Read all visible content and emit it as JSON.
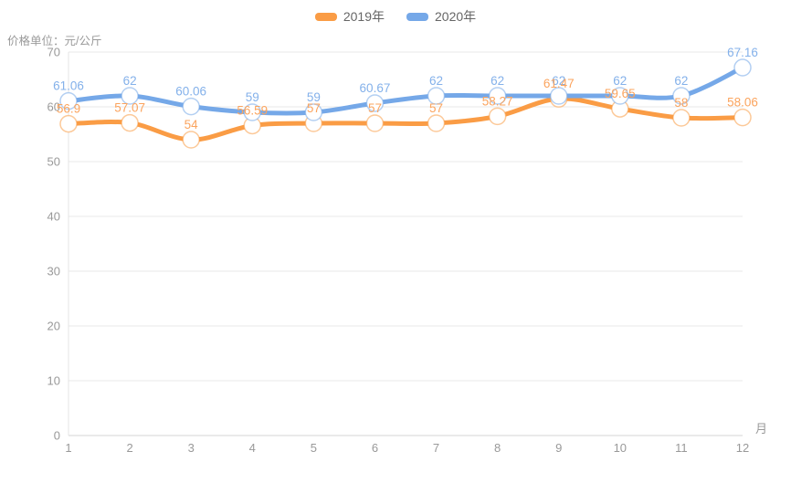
{
  "header": {
    "unit_label": "价格单位：元/公斤"
  },
  "legend": {
    "items": [
      {
        "label": "2019年",
        "color": "#fa9c45"
      },
      {
        "label": "2020年",
        "color": "#75a8e8"
      }
    ]
  },
  "chart_data": {
    "type": "line",
    "title": "价格单位：元/公斤",
    "categories": [
      "1",
      "2",
      "3",
      "4",
      "5",
      "6",
      "7",
      "8",
      "9",
      "10",
      "11",
      "12"
    ],
    "xlabel": "月",
    "ylabel": "价格单位：元/公斤",
    "ylim": [
      0,
      70
    ],
    "ytick_step": 10,
    "grid": true,
    "smooth": true,
    "legend_position": "top-center",
    "axis_text_color": "#999999",
    "grid_line_color": "#e9e9e9",
    "series": [
      {
        "name": "2019年",
        "color": "#fa9c45",
        "label_color": "#fba45e",
        "values": [
          56.9,
          57.07,
          54,
          56.59,
          57,
          57,
          57,
          58.27,
          61.47,
          59.65,
          58,
          58.06
        ]
      },
      {
        "name": "2020年",
        "color": "#75a8e8",
        "label_color": "#84b1ea",
        "values": [
          61.06,
          62,
          60.06,
          59,
          59,
          60.67,
          62,
          62,
          62,
          62,
          62,
          67.16
        ]
      }
    ]
  }
}
